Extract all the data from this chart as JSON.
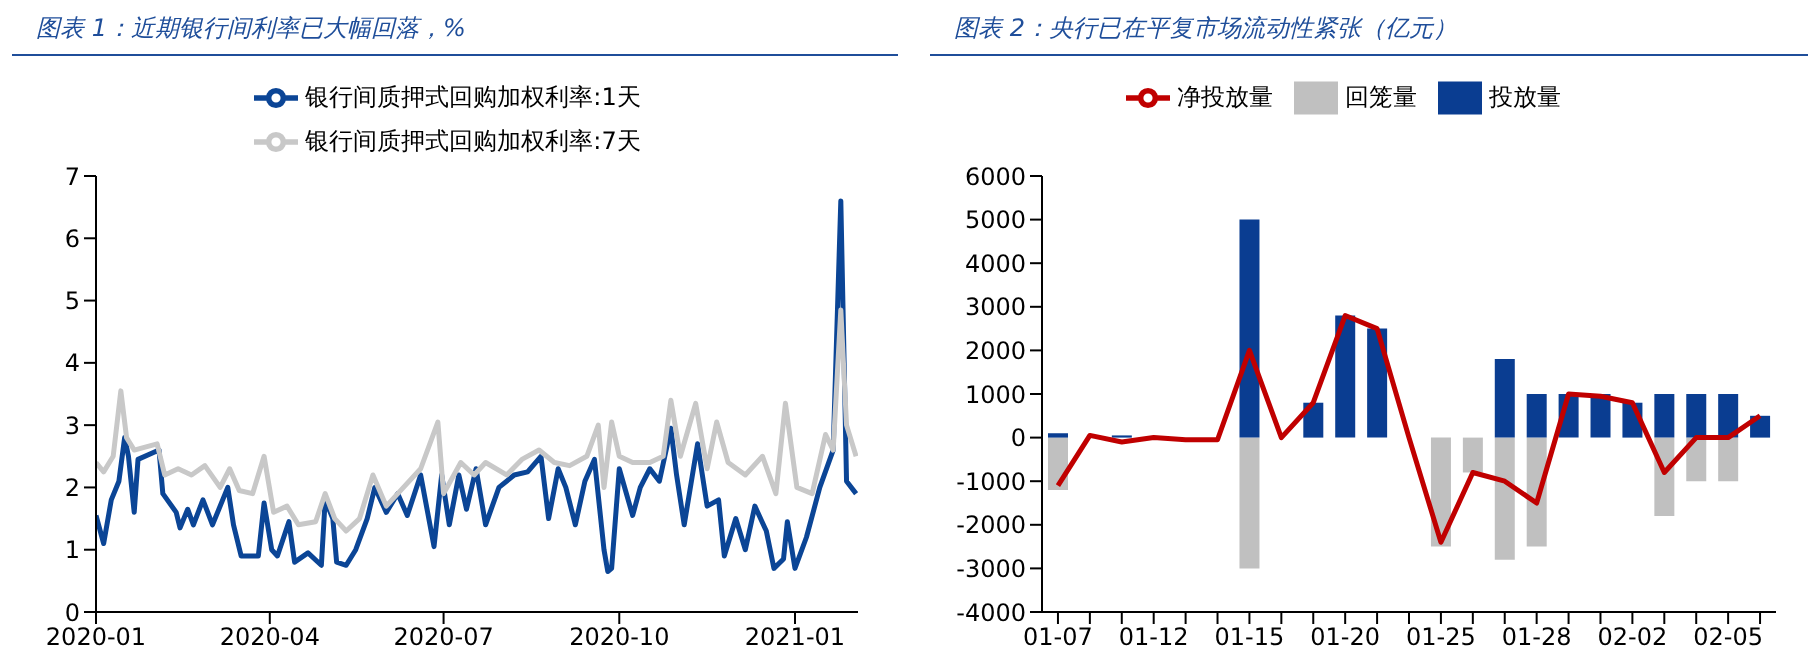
{
  "chart_data": [
    {
      "type": "line",
      "title": "图表 1：近期银行间利率已大幅回落，%",
      "legend": "top",
      "marker": "none",
      "line_style": "solid",
      "xlim": [
        "2020-01-01",
        "2021-02-03"
      ],
      "xticks": [
        "2020-01",
        "2020-04",
        "2020-07",
        "2020-10",
        "2021-01"
      ],
      "ylim": [
        0,
        7
      ],
      "yticks": [
        0,
        1,
        2,
        3,
        4,
        5,
        6,
        7
      ],
      "series": [
        {
          "name": "银行间质押式回购加权利率:1天",
          "color": "#0b4596",
          "x": [
            "2020-01-01",
            "2020-01-05",
            "2020-01-09",
            "2020-01-13",
            "2020-01-16",
            "2020-01-18",
            "2020-01-21",
            "2020-01-23",
            "2020-02-03",
            "2020-02-05",
            "2020-02-12",
            "2020-02-14",
            "2020-02-18",
            "2020-02-21",
            "2020-02-26",
            "2020-03-02",
            "2020-03-10",
            "2020-03-13",
            "2020-03-17",
            "2020-03-26",
            "2020-03-29",
            "2020-04-02",
            "2020-04-05",
            "2020-04-11",
            "2020-04-14",
            "2020-04-21",
            "2020-04-28",
            "2020-04-30",
            "2020-05-04",
            "2020-05-06",
            "2020-05-11",
            "2020-05-16",
            "2020-05-22",
            "2020-05-26",
            "2020-06-01",
            "2020-06-07",
            "2020-06-12",
            "2020-06-19",
            "2020-06-26",
            "2020-06-30",
            "2020-07-04",
            "2020-07-09",
            "2020-07-13",
            "2020-07-18",
            "2020-07-23",
            "2020-07-30",
            "2020-08-07",
            "2020-08-14",
            "2020-08-21",
            "2020-08-25",
            "2020-08-30",
            "2020-09-03",
            "2020-09-08",
            "2020-09-13",
            "2020-09-18",
            "2020-09-23",
            "2020-09-25",
            "2020-09-27",
            "2020-10-01",
            "2020-10-08",
            "2020-10-12",
            "2020-10-17",
            "2020-10-22",
            "2020-10-28",
            "2020-10-31",
            "2020-11-04",
            "2020-11-11",
            "2020-11-16",
            "2020-11-22",
            "2020-11-25",
            "2020-12-01",
            "2020-12-06",
            "2020-12-11",
            "2020-12-17",
            "2020-12-21",
            "2020-12-26",
            "2020-12-28",
            "2021-01-01",
            "2021-01-07",
            "2021-01-14",
            "2021-01-21",
            "2021-01-25",
            "2021-01-28",
            "2021-02-02"
          ],
          "values": [
            1.55,
            1.1,
            1.8,
            2.1,
            2.8,
            2.5,
            1.6,
            2.45,
            2.6,
            1.9,
            1.6,
            1.35,
            1.65,
            1.4,
            1.8,
            1.4,
            2.0,
            1.4,
            0.9,
            0.9,
            1.75,
            1.0,
            0.9,
            1.45,
            0.8,
            0.95,
            0.75,
            1.8,
            1.5,
            0.8,
            0.75,
            1.0,
            1.5,
            2.0,
            1.6,
            1.9,
            1.55,
            2.2,
            1.05,
            2.2,
            1.4,
            2.2,
            1.65,
            2.3,
            1.4,
            2.0,
            2.2,
            2.25,
            2.5,
            1.5,
            2.3,
            2.0,
            1.4,
            2.1,
            2.45,
            1.0,
            0.65,
            0.7,
            2.3,
            1.55,
            2.0,
            2.3,
            2.1,
            2.95,
            2.2,
            1.4,
            2.7,
            1.7,
            1.8,
            0.9,
            1.5,
            1.0,
            1.7,
            1.3,
            0.7,
            0.85,
            1.45,
            0.7,
            1.2,
            2.0,
            2.6,
            6.6,
            2.1,
            1.9
          ]
        },
        {
          "name": "银行间质押式回购加权利率:7天",
          "color": "#c8c8c8",
          "x": [
            "2020-01-01",
            "2020-01-05",
            "2020-01-10",
            "2020-01-14",
            "2020-01-17",
            "2020-01-21",
            "2020-02-02",
            "2020-02-06",
            "2020-02-13",
            "2020-02-20",
            "2020-02-27",
            "2020-03-06",
            "2020-03-11",
            "2020-03-16",
            "2020-03-23",
            "2020-03-29",
            "2020-04-03",
            "2020-04-10",
            "2020-04-16",
            "2020-04-25",
            "2020-04-30",
            "2020-05-05",
            "2020-05-11",
            "2020-05-18",
            "2020-05-25",
            "2020-06-01",
            "2020-06-10",
            "2020-06-19",
            "2020-06-28",
            "2020-07-01",
            "2020-07-10",
            "2020-07-17",
            "2020-07-23",
            "2020-08-03",
            "2020-08-11",
            "2020-08-20",
            "2020-08-28",
            "2020-09-05",
            "2020-09-14",
            "2020-09-20",
            "2020-09-23",
            "2020-09-27",
            "2020-10-01",
            "2020-10-08",
            "2020-10-17",
            "2020-10-24",
            "2020-10-28",
            "2020-11-02",
            "2020-11-10",
            "2020-11-16",
            "2020-11-21",
            "2020-11-27",
            "2020-12-06",
            "2020-12-15",
            "2020-12-22",
            "2020-12-27",
            "2021-01-02",
            "2021-01-10",
            "2021-01-17",
            "2021-01-21",
            "2021-01-25",
            "2021-01-28",
            "2021-02-02"
          ],
          "values": [
            2.4,
            2.25,
            2.5,
            3.55,
            2.8,
            2.6,
            2.7,
            2.2,
            2.3,
            2.2,
            2.35,
            2.0,
            2.3,
            1.95,
            1.9,
            2.5,
            1.6,
            1.7,
            1.4,
            1.45,
            1.9,
            1.5,
            1.3,
            1.5,
            2.2,
            1.7,
            2.0,
            2.3,
            3.05,
            1.9,
            2.4,
            2.2,
            2.4,
            2.2,
            2.45,
            2.6,
            2.4,
            2.35,
            2.5,
            3.0,
            2.0,
            3.05,
            2.5,
            2.4,
            2.4,
            2.5,
            3.4,
            2.5,
            3.35,
            2.3,
            3.05,
            2.4,
            2.2,
            2.5,
            1.9,
            3.35,
            2.0,
            1.9,
            2.85,
            2.6,
            4.85,
            3.0,
            2.5
          ]
        }
      ]
    },
    {
      "type": "bar",
      "title": "图表 2：央行已在平复市场流动性紧张（亿元）",
      "legend": "top",
      "stacked": true,
      "marker": "none",
      "line_style": "solid",
      "ylim": [
        -4000,
        6000
      ],
      "yticks": [
        -4000,
        -3000,
        -2000,
        -1000,
        0,
        1000,
        2000,
        3000,
        4000,
        5000,
        6000
      ],
      "categories": [
        "01-07",
        null,
        null,
        "01-12",
        null,
        null,
        "01-15",
        null,
        null,
        "01-20",
        null,
        null,
        "01-25",
        null,
        null,
        "01-28",
        null,
        null,
        "02-02",
        null,
        null,
        "02-05",
        null
      ],
      "series": [
        {
          "name": "回笼量",
          "color": "#c0c0c0",
          "values": [
            -1200,
            0,
            0,
            0,
            0,
            0,
            -3000,
            0,
            0,
            0,
            0,
            0,
            -2500,
            -800,
            -2800,
            -2500,
            0,
            0,
            0,
            -1800,
            -1000,
            -1000,
            0
          ]
        },
        {
          "name": "投放量",
          "color": "#0a3d91",
          "values": [
            100,
            0,
            50,
            null,
            0,
            0,
            5000,
            0,
            800,
            2800,
            2500,
            0,
            0,
            0,
            1800,
            1000,
            1000,
            1000,
            800,
            1000,
            1000,
            1000,
            500
          ]
        },
        {
          "name": "净投放量",
          "type": "line",
          "color": "#c00000",
          "values": [
            -1100,
            50,
            -100,
            0,
            -50,
            -50,
            2000,
            0,
            800,
            2800,
            2500,
            0,
            -2400,
            -800,
            -1000,
            -1500,
            1000,
            950,
            800,
            -800,
            0,
            0,
            500
          ]
        }
      ]
    }
  ]
}
